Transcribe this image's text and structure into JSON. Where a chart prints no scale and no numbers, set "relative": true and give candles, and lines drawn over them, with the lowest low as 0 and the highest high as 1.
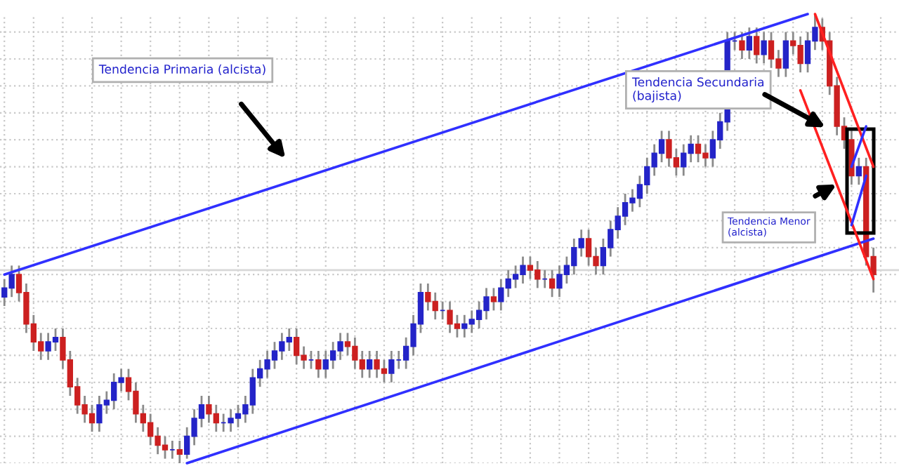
{
  "chart_data": {
    "type": "candlestick",
    "relative": true,
    "grid": true,
    "categories": [
      null,
      null,
      null,
      null,
      null,
      null,
      null,
      null,
      null,
      null,
      null,
      null,
      null,
      null,
      null,
      null,
      null,
      null,
      null,
      null,
      null,
      null,
      null,
      null,
      null,
      null,
      null,
      null,
      null,
      null,
      null,
      null,
      null,
      null,
      null,
      null,
      null,
      null,
      null,
      null,
      null,
      null,
      null,
      null,
      null,
      null,
      null,
      null,
      null,
      null,
      null,
      null,
      null,
      null,
      null,
      null,
      null,
      null,
      null,
      null,
      null,
      null,
      null,
      null,
      null,
      null,
      null,
      null,
      null,
      null,
      null,
      null,
      null,
      null,
      null,
      null,
      null,
      null,
      null,
      null,
      null,
      null,
      null,
      null,
      null,
      null,
      null,
      null,
      null,
      null,
      null,
      null,
      null,
      null,
      null,
      null,
      null,
      null,
      null,
      null,
      null,
      null,
      null,
      null,
      null,
      null,
      null,
      null,
      null,
      null,
      null,
      null,
      null,
      null,
      null,
      null,
      null,
      null,
      null,
      null
    ],
    "ohlc": [
      [
        0.37,
        0.41,
        0.35,
        0.39
      ],
      [
        0.39,
        0.44,
        0.37,
        0.42
      ],
      [
        0.42,
        0.44,
        0.36,
        0.38
      ],
      [
        0.38,
        0.4,
        0.29,
        0.31
      ],
      [
        0.31,
        0.33,
        0.25,
        0.27
      ],
      [
        0.27,
        0.29,
        0.23,
        0.25
      ],
      [
        0.25,
        0.29,
        0.23,
        0.27
      ],
      [
        0.27,
        0.3,
        0.25,
        0.28
      ],
      [
        0.28,
        0.3,
        0.21,
        0.23
      ],
      [
        0.23,
        0.25,
        0.15,
        0.17
      ],
      [
        0.17,
        0.19,
        0.11,
        0.13
      ],
      [
        0.13,
        0.15,
        0.09,
        0.11
      ],
      [
        0.11,
        0.13,
        0.07,
        0.09
      ],
      [
        0.09,
        0.15,
        0.07,
        0.13
      ],
      [
        0.13,
        0.16,
        0.11,
        0.14
      ],
      [
        0.14,
        0.2,
        0.12,
        0.18
      ],
      [
        0.18,
        0.21,
        0.16,
        0.19
      ],
      [
        0.19,
        0.21,
        0.14,
        0.16
      ],
      [
        0.16,
        0.18,
        0.09,
        0.11
      ],
      [
        0.11,
        0.13,
        0.07,
        0.09
      ],
      [
        0.09,
        0.11,
        0.04,
        0.06
      ],
      [
        0.06,
        0.08,
        0.02,
        0.04
      ],
      [
        0.04,
        0.06,
        0.01,
        0.03
      ],
      [
        0.03,
        0.05,
        0.01,
        0.03
      ],
      [
        0.03,
        0.05,
        0,
        0.02
      ],
      [
        0.02,
        0.08,
        0.01,
        0.06
      ],
      [
        0.06,
        0.12,
        0.04,
        0.1
      ],
      [
        0.1,
        0.15,
        0.08,
        0.13
      ],
      [
        0.13,
        0.15,
        0.09,
        0.11
      ],
      [
        0.11,
        0.13,
        0.07,
        0.09
      ],
      [
        0.09,
        0.11,
        0.07,
        0.09
      ],
      [
        0.09,
        0.12,
        0.07,
        0.1
      ],
      [
        0.1,
        0.13,
        0.08,
        0.11
      ],
      [
        0.11,
        0.15,
        0.09,
        0.13
      ],
      [
        0.13,
        0.21,
        0.11,
        0.19
      ],
      [
        0.19,
        0.23,
        0.17,
        0.21
      ],
      [
        0.21,
        0.25,
        0.19,
        0.23
      ],
      [
        0.23,
        0.27,
        0.21,
        0.25
      ],
      [
        0.25,
        0.29,
        0.23,
        0.27
      ],
      [
        0.27,
        0.3,
        0.25,
        0.28
      ],
      [
        0.28,
        0.3,
        0.22,
        0.24
      ],
      [
        0.24,
        0.26,
        0.21,
        0.23
      ],
      [
        0.23,
        0.25,
        0.21,
        0.23
      ],
      [
        0.23,
        0.25,
        0.19,
        0.21
      ],
      [
        0.21,
        0.25,
        0.19,
        0.23
      ],
      [
        0.23,
        0.27,
        0.21,
        0.25
      ],
      [
        0.25,
        0.29,
        0.23,
        0.27
      ],
      [
        0.27,
        0.29,
        0.24,
        0.26
      ],
      [
        0.26,
        0.28,
        0.21,
        0.23
      ],
      [
        0.23,
        0.25,
        0.19,
        0.21
      ],
      [
        0.21,
        0.25,
        0.19,
        0.23
      ],
      [
        0.23,
        0.25,
        0.19,
        0.21
      ],
      [
        0.21,
        0.23,
        0.18,
        0.2
      ],
      [
        0.2,
        0.25,
        0.18,
        0.23
      ],
      [
        0.23,
        0.25,
        0.21,
        0.23
      ],
      [
        0.23,
        0.28,
        0.21,
        0.26
      ],
      [
        0.26,
        0.33,
        0.24,
        0.31
      ],
      [
        0.31,
        0.4,
        0.29,
        0.38
      ],
      [
        0.38,
        0.4,
        0.34,
        0.36
      ],
      [
        0.36,
        0.38,
        0.32,
        0.34
      ],
      [
        0.34,
        0.36,
        0.32,
        0.34
      ],
      [
        0.34,
        0.36,
        0.29,
        0.31
      ],
      [
        0.31,
        0.33,
        0.28,
        0.3
      ],
      [
        0.3,
        0.33,
        0.28,
        0.31
      ],
      [
        0.31,
        0.34,
        0.29,
        0.32
      ],
      [
        0.32,
        0.36,
        0.3,
        0.34
      ],
      [
        0.34,
        0.39,
        0.32,
        0.37
      ],
      [
        0.37,
        0.39,
        0.34,
        0.36
      ],
      [
        0.36,
        0.41,
        0.34,
        0.39
      ],
      [
        0.39,
        0.43,
        0.37,
        0.41
      ],
      [
        0.41,
        0.44,
        0.39,
        0.42
      ],
      [
        0.42,
        0.46,
        0.4,
        0.44
      ],
      [
        0.44,
        0.46,
        0.41,
        0.43
      ],
      [
        0.43,
        0.45,
        0.39,
        0.41
      ],
      [
        0.41,
        0.43,
        0.39,
        0.41
      ],
      [
        0.41,
        0.43,
        0.37,
        0.39
      ],
      [
        0.39,
        0.44,
        0.37,
        0.42
      ],
      [
        0.42,
        0.46,
        0.4,
        0.44
      ],
      [
        0.44,
        0.5,
        0.42,
        0.48
      ],
      [
        0.48,
        0.52,
        0.46,
        0.5
      ],
      [
        0.5,
        0.52,
        0.44,
        0.46
      ],
      [
        0.46,
        0.48,
        0.42,
        0.44
      ],
      [
        0.44,
        0.5,
        0.42,
        0.48
      ],
      [
        0.48,
        0.54,
        0.46,
        0.52
      ],
      [
        0.52,
        0.57,
        0.5,
        0.55
      ],
      [
        0.55,
        0.6,
        0.53,
        0.58
      ],
      [
        0.58,
        0.61,
        0.56,
        0.59
      ],
      [
        0.59,
        0.64,
        0.57,
        0.62
      ],
      [
        0.62,
        0.68,
        0.6,
        0.66
      ],
      [
        0.66,
        0.71,
        0.64,
        0.69
      ],
      [
        0.69,
        0.74,
        0.67,
        0.72
      ],
      [
        0.72,
        0.74,
        0.66,
        0.68
      ],
      [
        0.68,
        0.7,
        0.64,
        0.66
      ],
      [
        0.66,
        0.71,
        0.64,
        0.69
      ],
      [
        0.69,
        0.73,
        0.67,
        0.71
      ],
      [
        0.71,
        0.73,
        0.67,
        0.69
      ],
      [
        0.69,
        0.71,
        0.66,
        0.68
      ],
      [
        0.68,
        0.74,
        0.66,
        0.72
      ],
      [
        0.72,
        0.78,
        0.7,
        0.76
      ],
      [
        0.76,
        0.96,
        0.74,
        0.94
      ],
      [
        0.94,
        0.96,
        0.92,
        0.94
      ],
      [
        0.94,
        0.96,
        0.9,
        0.92
      ],
      [
        0.92,
        0.97,
        0.9,
        0.95
      ],
      [
        0.95,
        0.97,
        0.89,
        0.91
      ],
      [
        0.91,
        0.96,
        0.89,
        0.94
      ],
      [
        0.94,
        0.96,
        0.88,
        0.9
      ],
      [
        0.9,
        0.92,
        0.86,
        0.88
      ],
      [
        0.88,
        0.96,
        0.86,
        0.94
      ],
      [
        0.94,
        0.96,
        0.91,
        0.93
      ],
      [
        0.93,
        0.95,
        0.87,
        0.89
      ],
      [
        0.89,
        0.96,
        0.87,
        0.94
      ],
      [
        0.94,
        1,
        0.92,
        0.97
      ],
      [
        0.97,
        0.99,
        0.92,
        0.94
      ],
      [
        0.94,
        0.96,
        0.82,
        0.84
      ],
      [
        0.84,
        0.86,
        0.73,
        0.75
      ],
      [
        0.75,
        0.77,
        0.7,
        0.72
      ],
      [
        0.72,
        0.74,
        0.62,
        0.64
      ],
      [
        0.64,
        0.68,
        0.62,
        0.66
      ],
      [
        0.66,
        0.68,
        0.44,
        0.46
      ],
      [
        0.46,
        0.48,
        0.38,
        0.42
      ]
    ],
    "series": [
      {
        "type": "line",
        "color": "#3030ff",
        "values": [
          0.42,
          null,
          null,
          null,
          null,
          null,
          null,
          null,
          null,
          null,
          null,
          null,
          null,
          null,
          null,
          null,
          null,
          null,
          null,
          null,
          null,
          null,
          null,
          null,
          null,
          null,
          null,
          null,
          null,
          null,
          null,
          null,
          null,
          null,
          null,
          null,
          null,
          null,
          null,
          null,
          null,
          null,
          null,
          null,
          null,
          null,
          null,
          null,
          null,
          null,
          null,
          null,
          null,
          null,
          null,
          null,
          null,
          null,
          null,
          null,
          null,
          null,
          null,
          null,
          null,
          null,
          null,
          null,
          null,
          null,
          null,
          null,
          null,
          null,
          null,
          null,
          null,
          null,
          null,
          null,
          null,
          null,
          null,
          null,
          null,
          null,
          null,
          null,
          null,
          null,
          null,
          null,
          null,
          null,
          null,
          null,
          null,
          null,
          null,
          null,
          null,
          null,
          null,
          null,
          null,
          null,
          null,
          null,
          null,
          null,
          1.0,
          null,
          null,
          null,
          null,
          null,
          null,
          null,
          null,
          null
        ]
      },
      {
        "type": "line",
        "color": "#3030ff",
        "values": [
          null,
          null,
          null,
          null,
          null,
          null,
          null,
          null,
          null,
          null,
          null,
          null,
          null,
          null,
          null,
          null,
          null,
          null,
          null,
          null,
          null,
          null,
          null,
          null,
          null,
          0,
          null,
          null,
          null,
          null,
          null,
          null,
          null,
          null,
          null,
          null,
          null,
          null,
          null,
          null,
          null,
          null,
          null,
          null,
          null,
          null,
          null,
          null,
          null,
          null,
          null,
          null,
          null,
          null,
          null,
          null,
          null,
          null,
          null,
          null,
          null,
          null,
          null,
          null,
          null,
          null,
          null,
          null,
          null,
          null,
          null,
          null,
          null,
          null,
          null,
          null,
          null,
          null,
          null,
          null,
          null,
          null,
          null,
          null,
          null,
          null,
          null,
          null,
          null,
          null,
          null,
          null,
          null,
          null,
          null,
          null,
          null,
          null,
          null,
          null,
          null,
          null,
          null,
          null,
          null,
          null,
          null,
          null,
          null,
          null,
          null,
          null,
          null,
          null,
          null,
          null,
          null,
          null,
          null,
          0.5
        ]
      },
      {
        "type": "line",
        "color": "#ff2020",
        "values": [
          null,
          null,
          null,
          null,
          null,
          null,
          null,
          null,
          null,
          null,
          null,
          null,
          null,
          null,
          null,
          null,
          null,
          null,
          null,
          null,
          null,
          null,
          null,
          null,
          null,
          null,
          null,
          null,
          null,
          null,
          null,
          null,
          null,
          null,
          null,
          null,
          null,
          null,
          null,
          null,
          null,
          null,
          null,
          null,
          null,
          null,
          null,
          null,
          null,
          null,
          null,
          null,
          null,
          null,
          null,
          null,
          null,
          null,
          null,
          null,
          null,
          null,
          null,
          null,
          null,
          null,
          null,
          null,
          null,
          null,
          null,
          null,
          null,
          null,
          null,
          null,
          null,
          null,
          null,
          null,
          null,
          null,
          null,
          null,
          null,
          null,
          null,
          null,
          null,
          null,
          null,
          null,
          null,
          null,
          null,
          null,
          null,
          null,
          null,
          null,
          null,
          null,
          null,
          null,
          null,
          null,
          null,
          null,
          null,
          null,
          null,
          1.0,
          null,
          null,
          null,
          null,
          null,
          null,
          null,
          0.66
        ]
      },
      {
        "type": "line",
        "color": "#ff2020",
        "values": [
          null,
          null,
          null,
          null,
          null,
          null,
          null,
          null,
          null,
          null,
          null,
          null,
          null,
          null,
          null,
          null,
          null,
          null,
          null,
          null,
          null,
          null,
          null,
          null,
          null,
          null,
          null,
          null,
          null,
          null,
          null,
          null,
          null,
          null,
          null,
          null,
          null,
          null,
          null,
          null,
          null,
          null,
          null,
          null,
          null,
          null,
          null,
          null,
          null,
          null,
          null,
          null,
          null,
          null,
          null,
          null,
          null,
          null,
          null,
          null,
          null,
          null,
          null,
          null,
          null,
          null,
          null,
          null,
          null,
          null,
          null,
          null,
          null,
          null,
          null,
          null,
          null,
          null,
          null,
          null,
          null,
          null,
          null,
          null,
          null,
          null,
          null,
          null,
          null,
          null,
          null,
          null,
          null,
          null,
          null,
          null,
          null,
          null,
          null,
          null,
          null,
          null,
          null,
          null,
          null,
          null,
          null,
          null,
          null,
          0.83,
          null,
          null,
          null,
          null,
          null,
          null,
          null,
          null,
          null,
          0.41
        ]
      },
      {
        "type": "line",
        "color": "#3030ff",
        "values": [
          null,
          null,
          null,
          null,
          null,
          null,
          null,
          null,
          null,
          null,
          null,
          null,
          null,
          null,
          null,
          null,
          null,
          null,
          null,
          null,
          null,
          null,
          null,
          null,
          null,
          null,
          null,
          null,
          null,
          null,
          null,
          null,
          null,
          null,
          null,
          null,
          null,
          null,
          null,
          null,
          null,
          null,
          null,
          null,
          null,
          null,
          null,
          null,
          null,
          null,
          null,
          null,
          null,
          null,
          null,
          null,
          null,
          null,
          null,
          null,
          null,
          null,
          null,
          null,
          null,
          null,
          null,
          null,
          null,
          null,
          null,
          null,
          null,
          null,
          null,
          null,
          null,
          null,
          null,
          null,
          null,
          null,
          null,
          null,
          null,
          null,
          null,
          null,
          null,
          null,
          null,
          null,
          null,
          null,
          null,
          null,
          null,
          null,
          null,
          null,
          null,
          null,
          null,
          null,
          null,
          null,
          null,
          null,
          null,
          null,
          null,
          null,
          null,
          null,
          null,
          null,
          0.66,
          null,
          0.75,
          null
        ]
      },
      {
        "type": "line",
        "color": "#3030ff",
        "values": [
          null,
          null,
          null,
          null,
          null,
          null,
          null,
          null,
          null,
          null,
          null,
          null,
          null,
          null,
          null,
          null,
          null,
          null,
          null,
          null,
          null,
          null,
          null,
          null,
          null,
          null,
          null,
          null,
          null,
          null,
          null,
          null,
          null,
          null,
          null,
          null,
          null,
          null,
          null,
          null,
          null,
          null,
          null,
          null,
          null,
          null,
          null,
          null,
          null,
          null,
          null,
          null,
          null,
          null,
          null,
          null,
          null,
          null,
          null,
          null,
          null,
          null,
          null,
          null,
          null,
          null,
          null,
          null,
          null,
          null,
          null,
          null,
          null,
          null,
          null,
          null,
          null,
          null,
          null,
          null,
          null,
          null,
          null,
          null,
          null,
          null,
          null,
          null,
          null,
          null,
          null,
          null,
          null,
          null,
          null,
          null,
          null,
          null,
          null,
          null,
          null,
          null,
          null,
          null,
          null,
          null,
          null,
          null,
          null,
          null,
          null,
          null,
          null,
          null,
          null,
          null,
          0.53,
          null,
          0.64,
          null
        ]
      }
    ],
    "ref_lines": [
      {
        "axis": "y",
        "value": 0.43,
        "color": "#d8d8d8"
      }
    ],
    "annotations": [
      "Tendencia Primaria (alcista)",
      "Tendencia Secundaria\n(bajista)",
      "Tendencia Menor\n(alcista)"
    ]
  }
}
